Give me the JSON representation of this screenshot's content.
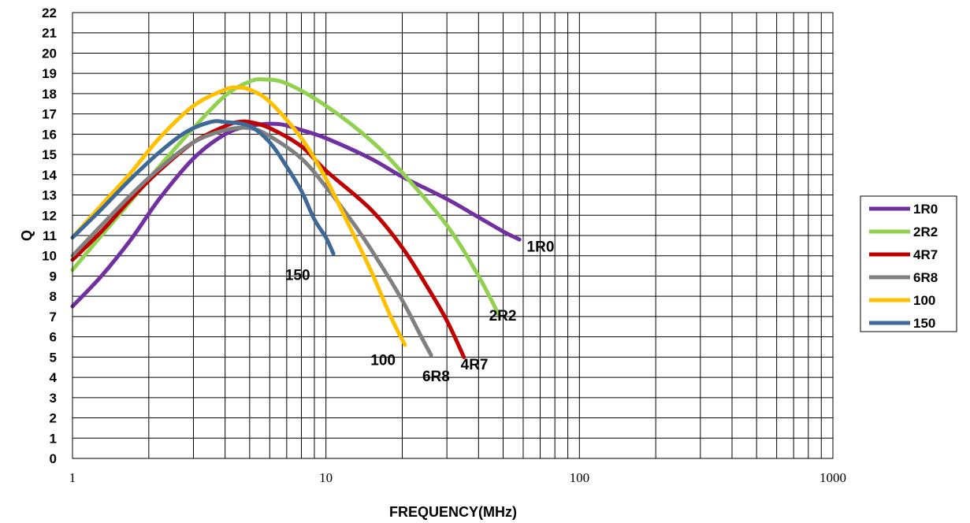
{
  "chart_data": {
    "type": "line",
    "title": "",
    "xlabel": "FREQUENCY(MHz)",
    "ylabel": "Q",
    "xscale": "log",
    "xlim": [
      1,
      1000
    ],
    "ylim": [
      0,
      22
    ],
    "x_ticks": [
      "1",
      "10",
      "100",
      "1000"
    ],
    "y_ticks": [
      "0",
      "1",
      "2",
      "3",
      "4",
      "5",
      "6",
      "7",
      "8",
      "9",
      "10",
      "11",
      "12",
      "13",
      "14",
      "15",
      "16",
      "17",
      "18",
      "19",
      "20",
      "21",
      "22"
    ],
    "grid": true,
    "legend_position": "right",
    "series": [
      {
        "name": "1R0",
        "color": "#7030a0",
        "label_point": [
          62,
          10.2
        ],
        "points": [
          [
            1,
            7.5
          ],
          [
            1.3,
            9.0
          ],
          [
            1.7,
            10.8
          ],
          [
            2.2,
            12.8
          ],
          [
            3.0,
            14.8
          ],
          [
            4.0,
            16.0
          ],
          [
            5.0,
            16.4
          ],
          [
            6.5,
            16.5
          ],
          [
            8.0,
            16.2
          ],
          [
            10,
            15.8
          ],
          [
            15,
            14.8
          ],
          [
            20,
            13.9
          ],
          [
            30,
            12.8
          ],
          [
            40,
            11.9
          ],
          [
            50,
            11.2
          ],
          [
            58,
            10.8
          ]
        ]
      },
      {
        "name": "2R2",
        "color": "#92d050",
        "label_point": [
          44,
          6.8
        ],
        "points": [
          [
            1,
            9.3
          ],
          [
            1.3,
            11.0
          ],
          [
            1.7,
            12.7
          ],
          [
            2.2,
            14.4
          ],
          [
            3.0,
            16.3
          ],
          [
            4.0,
            17.9
          ],
          [
            5.0,
            18.6
          ],
          [
            5.7,
            18.7
          ],
          [
            7.0,
            18.5
          ],
          [
            10,
            17.4
          ],
          [
            15,
            15.7
          ],
          [
            20,
            14.1
          ],
          [
            30,
            11.5
          ],
          [
            40,
            9.0
          ],
          [
            48,
            7.1
          ]
        ]
      },
      {
        "name": "4R7",
        "color": "#c00000",
        "label_point": [
          34,
          4.4
        ],
        "points": [
          [
            1,
            9.8
          ],
          [
            1.3,
            11.2
          ],
          [
            1.7,
            12.8
          ],
          [
            2.2,
            14.2
          ],
          [
            3.0,
            15.6
          ],
          [
            4.0,
            16.4
          ],
          [
            4.5,
            16.6
          ],
          [
            5.0,
            16.6
          ],
          [
            6.0,
            16.3
          ],
          [
            8.0,
            15.4
          ],
          [
            10,
            14.2
          ],
          [
            15,
            12.3
          ],
          [
            20,
            10.4
          ],
          [
            25,
            8.5
          ],
          [
            30,
            6.8
          ],
          [
            35,
            5.0
          ]
        ]
      },
      {
        "name": "6R8",
        "color": "#808080",
        "label_point": [
          24,
          3.8
        ],
        "points": [
          [
            1,
            10.0
          ],
          [
            1.3,
            11.5
          ],
          [
            1.7,
            13.0
          ],
          [
            2.2,
            14.3
          ],
          [
            3.0,
            15.6
          ],
          [
            4.0,
            16.2
          ],
          [
            5.0,
            16.3
          ],
          [
            6.0,
            15.9
          ],
          [
            8.0,
            14.8
          ],
          [
            10,
            13.4
          ],
          [
            13,
            11.5
          ],
          [
            16,
            9.8
          ],
          [
            20,
            7.8
          ],
          [
            24,
            5.9
          ],
          [
            26,
            5.1
          ]
        ]
      },
      {
        "name": "100",
        "color": "#ffc000",
        "label_point": [
          15,
          4.6
        ],
        "points": [
          [
            1,
            10.9
          ],
          [
            1.3,
            12.5
          ],
          [
            1.7,
            14.1
          ],
          [
            2.2,
            15.8
          ],
          [
            3.0,
            17.4
          ],
          [
            4.0,
            18.2
          ],
          [
            4.5,
            18.3
          ],
          [
            5.0,
            18.2
          ],
          [
            6.0,
            17.6
          ],
          [
            8.0,
            15.8
          ],
          [
            10,
            13.8
          ],
          [
            12,
            11.8
          ],
          [
            15,
            9.3
          ],
          [
            18,
            7.0
          ],
          [
            20.5,
            5.6
          ]
        ]
      },
      {
        "name": "150",
        "color": "#3e6896",
        "label_point": [
          6.9,
          8.8
        ],
        "points": [
          [
            1,
            10.9
          ],
          [
            1.3,
            12.3
          ],
          [
            1.7,
            13.8
          ],
          [
            2.2,
            15.1
          ],
          [
            2.8,
            16.1
          ],
          [
            3.5,
            16.6
          ],
          [
            4.0,
            16.6
          ],
          [
            5.0,
            16.4
          ],
          [
            6.0,
            15.6
          ],
          [
            7.0,
            14.4
          ],
          [
            8.0,
            13.2
          ],
          [
            9.0,
            11.8
          ],
          [
            10,
            10.9
          ],
          [
            10.7,
            10.1
          ]
        ]
      }
    ]
  }
}
